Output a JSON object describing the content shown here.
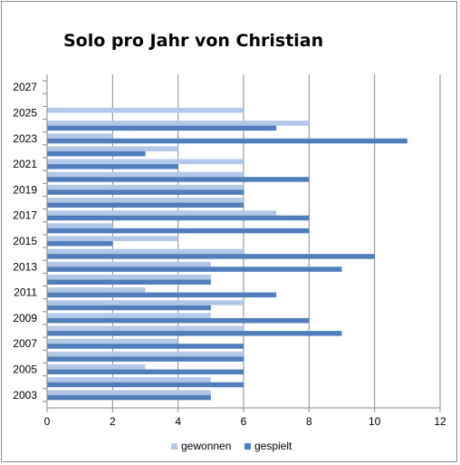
{
  "chart_data": {
    "type": "bar",
    "orientation": "horizontal",
    "title": "Solo pro Jahr von Christian",
    "xlabel": "",
    "ylabel": "",
    "xlim": [
      0,
      12
    ],
    "x_ticks": [
      "0",
      "2",
      "4",
      "6",
      "8",
      "10",
      "12"
    ],
    "y_ticks": [
      "2003",
      "2005",
      "2007",
      "2009",
      "2011",
      "2013",
      "2015",
      "2017",
      "2019",
      "2021",
      "2023",
      "2025",
      "2027"
    ],
    "categories": [
      2003,
      2004,
      2005,
      2006,
      2007,
      2008,
      2009,
      2010,
      2011,
      2012,
      2013,
      2014,
      2015,
      2016,
      2017,
      2018,
      2019,
      2020,
      2021,
      2022,
      2023,
      2024,
      2025,
      2026,
      2027
    ],
    "series": [
      {
        "name": "gewonnen",
        "color": "#b3c7e6",
        "values": [
          5,
          5,
          3,
          6,
          4,
          6,
          5,
          6,
          3,
          5,
          5,
          6,
          4,
          2,
          7,
          6,
          6,
          6,
          6,
          4,
          2,
          8,
          6,
          null,
          null
        ]
      },
      {
        "name": "gespielt",
        "color": "#4f7ebb",
        "values": [
          5,
          6,
          6,
          6,
          6,
          9,
          8,
          5,
          7,
          5,
          9,
          10,
          2,
          8,
          8,
          6,
          6,
          8,
          4,
          3,
          11,
          7,
          null,
          null,
          null
        ]
      }
    ],
    "grid": "vertical",
    "legend": "bottom"
  }
}
